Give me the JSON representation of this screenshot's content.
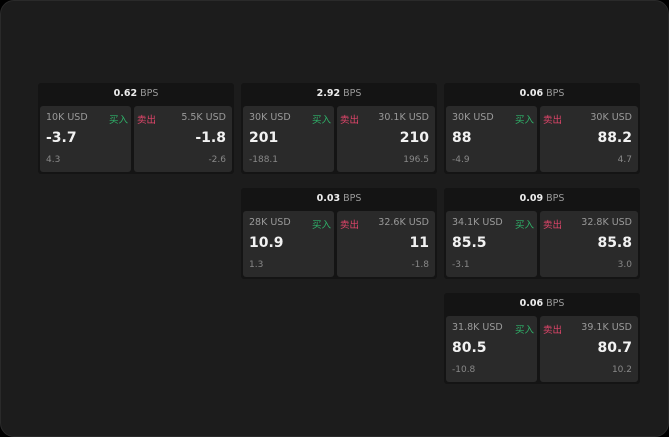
{
  "labels": {
    "unit": "BPS",
    "buy": "买入",
    "sell": "卖出"
  },
  "colors": {
    "buy": "#2fb36a",
    "sell": "#e0456a"
  },
  "cards": [
    {
      "spread": "0.62",
      "bid_size": "10K USD",
      "bid": "-3.7",
      "bid_change": "4.3",
      "ask_size": "5.5K USD",
      "ask": "-1.8",
      "ask_change": "-2.6"
    },
    {
      "spread": "2.92",
      "bid_size": "30K USD",
      "bid": "201",
      "bid_change": "-188.1",
      "ask_size": "30.1K USD",
      "ask": "210",
      "ask_change": "196.5"
    },
    {
      "spread": "0.06",
      "bid_size": "30K USD",
      "bid": "88",
      "bid_change": "-4.9",
      "ask_size": "30K USD",
      "ask": "88.2",
      "ask_change": "4.7"
    },
    {
      "spread": "0.03",
      "bid_size": "28K USD",
      "bid": "10.9",
      "bid_change": "1.3",
      "ask_size": "32.6K USD",
      "ask": "11",
      "ask_change": "-1.8"
    },
    {
      "spread": "0.09",
      "bid_size": "34.1K USD",
      "bid": "85.5",
      "bid_change": "-3.1",
      "ask_size": "32.8K USD",
      "ask": "85.8",
      "ask_change": "3.0"
    },
    {
      "spread": "0.06",
      "bid_size": "31.8K USD",
      "bid": "80.5",
      "bid_change": "-10.8",
      "ask_size": "39.1K USD",
      "ask": "80.7",
      "ask_change": "10.2"
    }
  ]
}
